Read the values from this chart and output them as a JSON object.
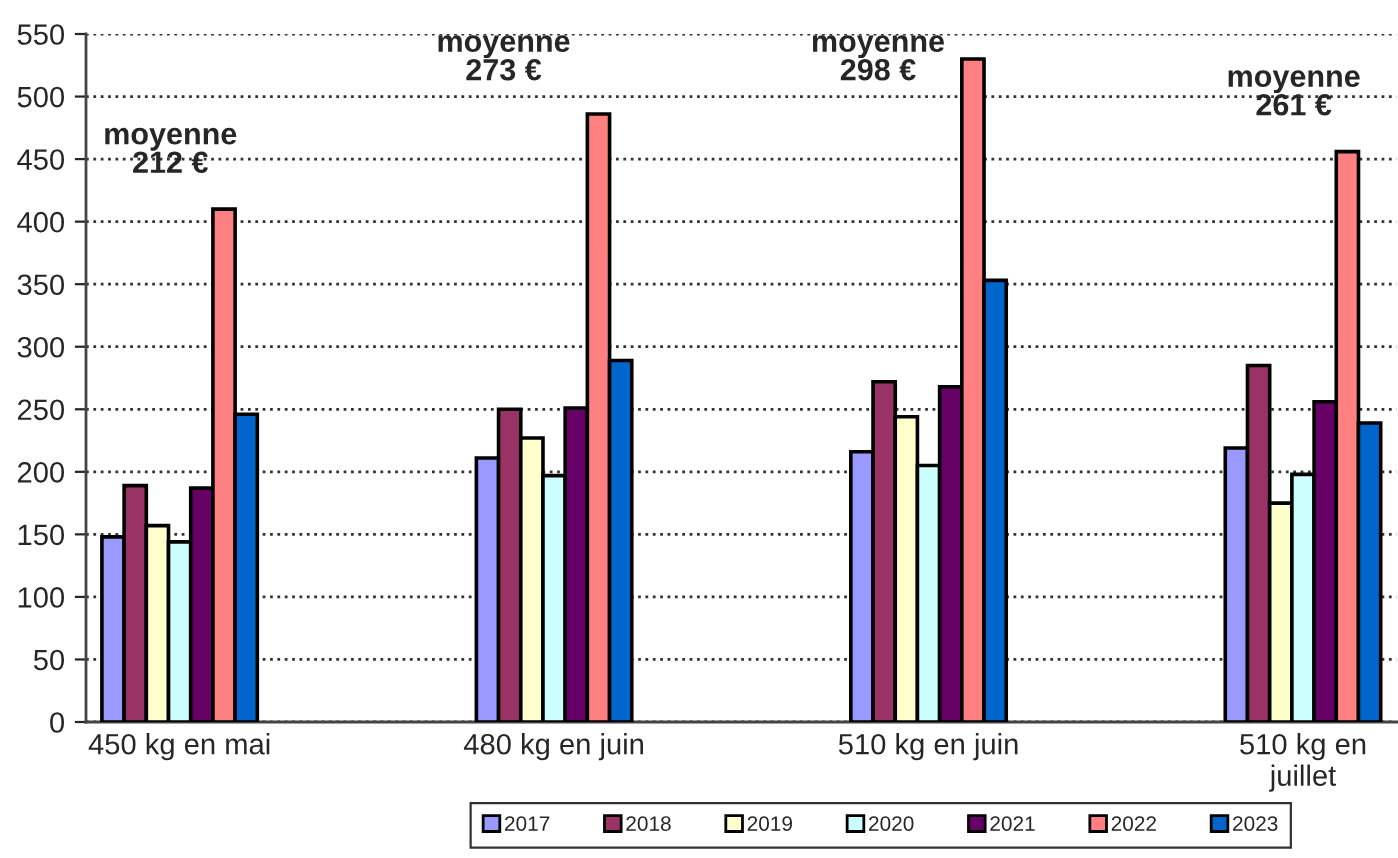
{
  "chart_data": {
    "type": "bar",
    "categories": [
      "450 kg en mai",
      null,
      "480 kg en juin",
      null,
      "510 kg en juin",
      null,
      "510 kg en\njuillet"
    ],
    "series": [
      {
        "name": "2017",
        "color": "#9999ff",
        "values": [
          148,
          null,
          211,
          null,
          216,
          null,
          219
        ]
      },
      {
        "name": "2018",
        "color": "#993366",
        "values": [
          189,
          null,
          250,
          null,
          272,
          null,
          285
        ]
      },
      {
        "name": "2019",
        "color": "#ffffcc",
        "values": [
          157,
          null,
          227,
          null,
          244,
          null,
          175
        ]
      },
      {
        "name": "2020",
        "color": "#ccffff",
        "values": [
          144,
          null,
          197,
          null,
          205,
          null,
          198
        ]
      },
      {
        "name": "2021",
        "color": "#660066",
        "values": [
          187,
          null,
          251,
          null,
          268,
          null,
          256
        ]
      },
      {
        "name": "2022",
        "color": "#ff8080",
        "values": [
          410,
          null,
          486,
          null,
          530,
          null,
          456
        ]
      },
      {
        "name": "2023",
        "color": "#0066cc",
        "values": [
          246,
          null,
          289,
          null,
          353,
          null,
          239
        ]
      }
    ],
    "ylim": [
      0,
      550
    ],
    "yticks": [
      0,
      50,
      100,
      150,
      200,
      250,
      300,
      350,
      400,
      450,
      500,
      550
    ],
    "grid": "y",
    "legend": "bottom",
    "annotations": [
      "moyenne\n212 €",
      "moyenne\n273 €",
      "moyenne\n298 €",
      "moyenne\n261 €"
    ]
  }
}
